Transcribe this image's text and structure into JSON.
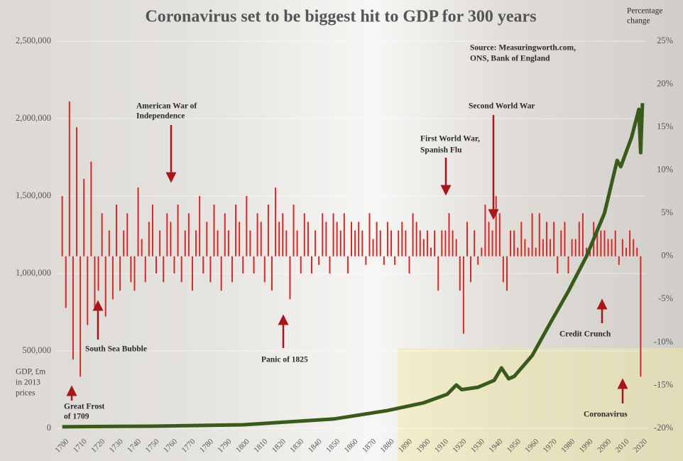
{
  "chart_data": {
    "type": "bar_line",
    "title": "Coronavirus set to be biggest hit to GDP for 300 years",
    "source": [
      "Source: Measuringworth.com,",
      "ONS, Bank of England"
    ],
    "y_axis_label": [
      "GDP, £m",
      "in 2013",
      "prices"
    ],
    "y2_axis_label": [
      "Percentage",
      "change"
    ],
    "annotations": {
      "american_war": [
        "American War of",
        "Independence"
      ],
      "second_world_war": [
        "Second World War"
      ],
      "first_world_war": [
        "First World War,",
        "Spanish Flu"
      ],
      "south_sea": [
        "South Sea Bubble"
      ],
      "panic_1825": [
        "Panic of 1825"
      ],
      "great_frost": [
        "Great Frost",
        "of 1709"
      ],
      "credit_crunch": [
        "Credit Crunch"
      ],
      "coronavirus": [
        "Coronavirus"
      ]
    },
    "xlim": [
      1697,
      2023
    ],
    "xticks": [
      1700,
      1710,
      1720,
      1730,
      1740,
      1750,
      1760,
      1770,
      1780,
      1790,
      1800,
      1810,
      1820,
      1830,
      1840,
      1850,
      1860,
      1870,
      1880,
      1890,
      1900,
      1910,
      1920,
      1930,
      1940,
      1950,
      1960,
      1970,
      1980,
      1990,
      2000,
      2010,
      2020
    ],
    "ylim": [
      0,
      2500000
    ],
    "yticks": [
      0,
      {
        "value": 500000,
        "label": "500,000"
      },
      {
        "value": 1000000,
        "label": "1,000,000"
      },
      {
        "value": 1500000,
        "label": "1,500,000"
      },
      {
        "value": 2000000,
        "label": "2,000,000"
      },
      {
        "value": 2500000,
        "label": "2,500,000"
      }
    ],
    "y2lim": [
      -20,
      25
    ],
    "y2ticks": [
      {
        "value": -20,
        "label": "-20%"
      },
      {
        "value": -15,
        "label": "-15%"
      },
      {
        "value": -10,
        "label": "-10%"
      },
      {
        "value": -5,
        "label": "-5%"
      },
      {
        "value": 0,
        "label": "0%"
      },
      {
        "value": 5,
        "label": "5%"
      },
      {
        "value": 10,
        "label": "10%"
      },
      {
        "value": 15,
        "label": "15%"
      },
      {
        "value": 20,
        "label": "20%"
      },
      {
        "value": 25,
        "label": "25%"
      }
    ],
    "grid": true,
    "series": [
      {
        "type": "bar",
        "axis": "y2",
        "color": "#d42a2a",
        "x": [
          1700,
          1702,
          1704,
          1706,
          1708,
          1710,
          1712,
          1714,
          1716,
          1718,
          1720,
          1722,
          1724,
          1726,
          1728,
          1730,
          1732,
          1734,
          1736,
          1738,
          1740,
          1742,
          1744,
          1746,
          1748,
          1750,
          1752,
          1754,
          1756,
          1758,
          1760,
          1762,
          1764,
          1766,
          1768,
          1770,
          1772,
          1774,
          1776,
          1778,
          1780,
          1782,
          1784,
          1786,
          1788,
          1790,
          1792,
          1794,
          1796,
          1798,
          1800,
          1802,
          1804,
          1806,
          1808,
          1810,
          1812,
          1814,
          1816,
          1818,
          1820,
          1822,
          1824,
          1826,
          1828,
          1830,
          1832,
          1834,
          1836,
          1838,
          1840,
          1842,
          1844,
          1846,
          1848,
          1850,
          1852,
          1854,
          1856,
          1858,
          1860,
          1862,
          1864,
          1866,
          1868,
          1870,
          1872,
          1874,
          1876,
          1878,
          1880,
          1882,
          1884,
          1886,
          1888,
          1890,
          1892,
          1894,
          1896,
          1898,
          1900,
          1902,
          1904,
          1906,
          1908,
          1910,
          1912,
          1914,
          1916,
          1918,
          1920,
          1922,
          1924,
          1926,
          1928,
          1930,
          1932,
          1934,
          1936,
          1938,
          1940,
          1942,
          1944,
          1946,
          1948,
          1950,
          1952,
          1954,
          1956,
          1958,
          1960,
          1962,
          1964,
          1966,
          1968,
          1970,
          1972,
          1974,
          1976,
          1978,
          1980,
          1982,
          1984,
          1986,
          1988,
          1990,
          1992,
          1994,
          1996,
          1998,
          2000,
          2002,
          2004,
          2006,
          2008,
          2010,
          2012,
          2014,
          2016,
          2018,
          2020
        ],
        "values": [
          7,
          -6,
          18,
          -12,
          15,
          -14,
          9,
          -8,
          11,
          -6,
          -4,
          5,
          -7,
          3,
          -5,
          6,
          -4,
          3,
          5,
          -3,
          -4,
          8,
          2,
          -3,
          4,
          6,
          -2,
          3,
          -3,
          5,
          4,
          -2,
          6,
          -3,
          3,
          5,
          -4,
          3,
          7,
          -2,
          4,
          -3,
          6,
          3,
          -4,
          5,
          3,
          -3,
          6,
          4,
          -2,
          7,
          3,
          -2,
          5,
          4,
          -3,
          6,
          -4,
          8,
          4,
          5,
          3,
          -5,
          6,
          3,
          -2,
          5,
          4,
          -2,
          3,
          -1,
          5,
          4,
          -2,
          5,
          4,
          3,
          5,
          -2,
          4,
          3,
          4,
          3,
          -1,
          5,
          2,
          4,
          3,
          -1,
          4,
          3,
          -1,
          3,
          4,
          3,
          -2,
          5,
          4,
          3,
          2,
          3,
          1,
          3,
          -4,
          3,
          3,
          5,
          3,
          2,
          -4,
          -9,
          4,
          -3,
          3,
          -1,
          1,
          6,
          4,
          3,
          7,
          5,
          -3,
          -4,
          3,
          3,
          1,
          4,
          2,
          1,
          5,
          1,
          5,
          2,
          4,
          2,
          4,
          -2,
          3,
          4,
          -2,
          2,
          2,
          4,
          5,
          1,
          1,
          4,
          3,
          3,
          3,
          2,
          2,
          3,
          -1,
          2,
          1,
          3,
          2,
          1,
          -14
        ]
      },
      {
        "type": "line",
        "axis": "y",
        "color": "#3a5a1c",
        "x": [
          1700,
          1750,
          1800,
          1850,
          1880,
          1900,
          1913,
          1918,
          1921,
          1930,
          1939,
          1943,
          1947,
          1950,
          1960,
          1970,
          1980,
          1990,
          2000,
          2007,
          2009,
          2015,
          2019,
          2020,
          2021
        ],
        "values": [
          10000,
          14000,
          23000,
          60000,
          115000,
          165000,
          220000,
          280000,
          250000,
          265000,
          310000,
          390000,
          320000,
          335000,
          470000,
          680000,
          885000,
          1110000,
          1390000,
          1730000,
          1690000,
          1880000,
          2060000,
          1780000,
          2100000
        ]
      }
    ]
  }
}
